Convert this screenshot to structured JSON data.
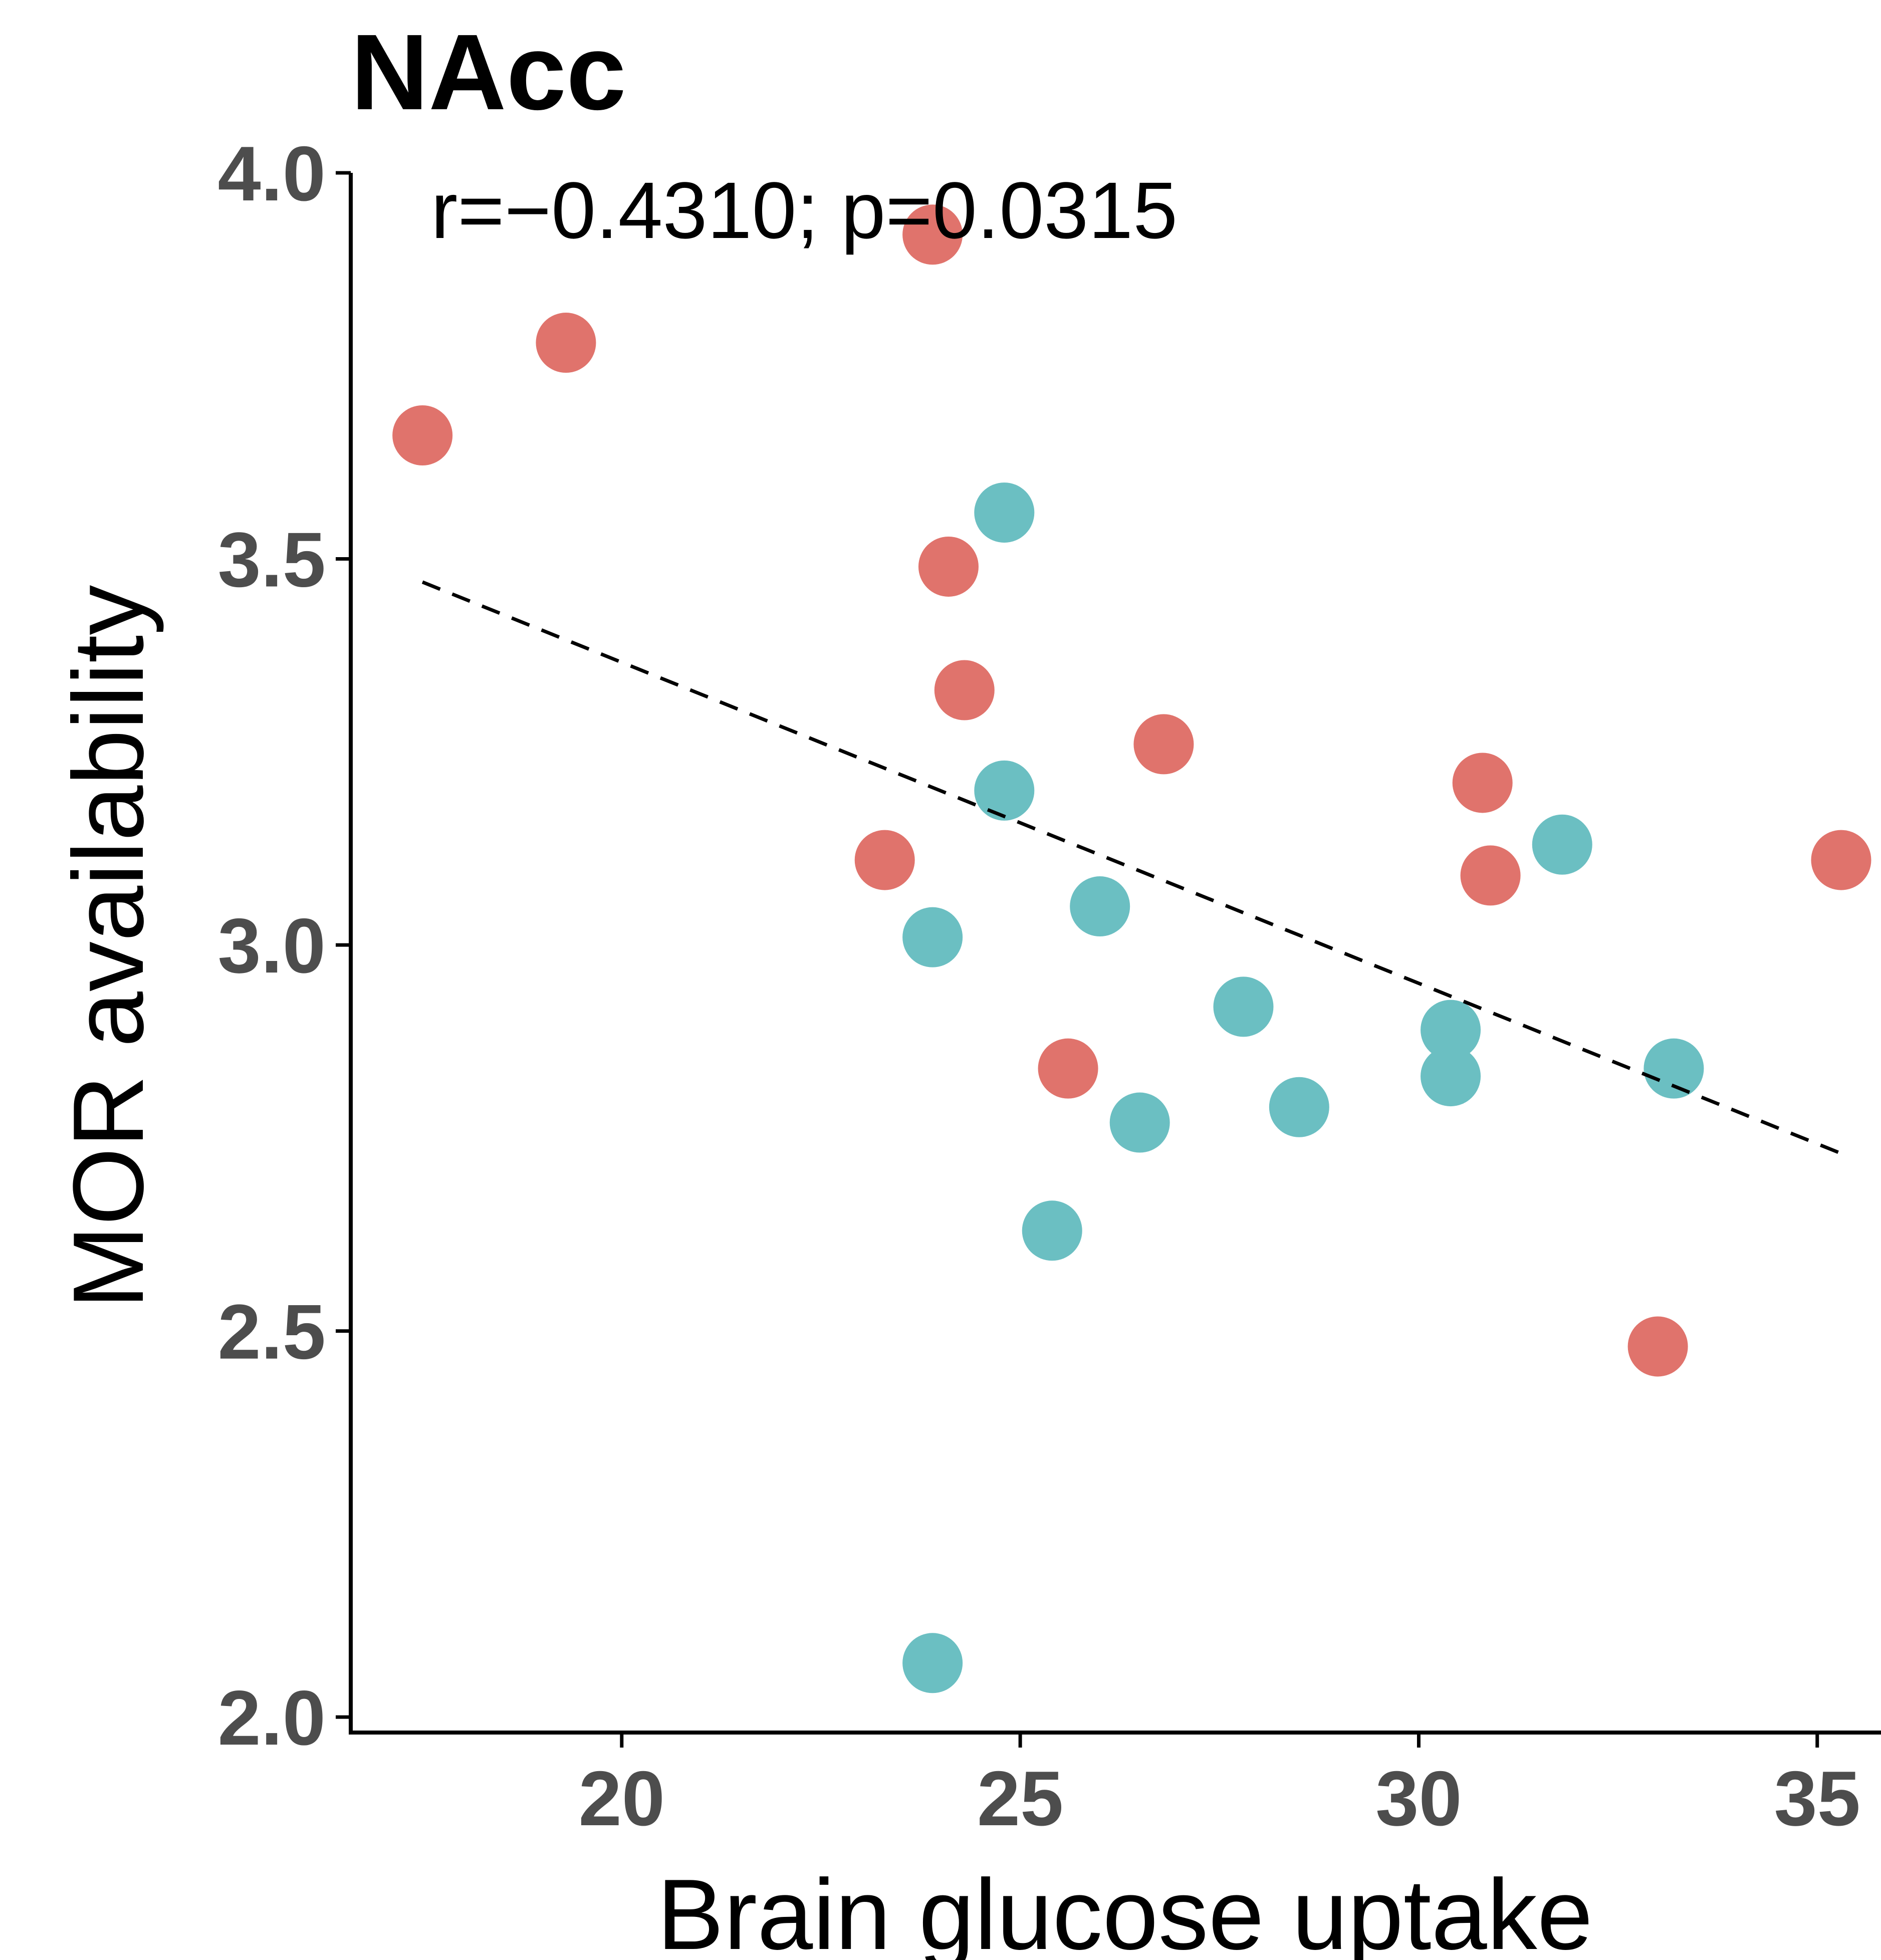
{
  "chart_data": {
    "type": "scatter",
    "title": "NAcc",
    "annotation": "r=−0.4310; p=0.0315",
    "xlabel": "Brain glucose uptake",
    "ylabel": "MOR availability",
    "xlim": [
      16.6,
      35.8
    ],
    "ylim": [
      1.98,
      4.0
    ],
    "x_ticks": [
      {
        "value": 20,
        "label": "20"
      },
      {
        "value": 25,
        "label": "25"
      },
      {
        "value": 30,
        "label": "30"
      },
      {
        "value": 35,
        "label": "35"
      }
    ],
    "y_ticks": [
      {
        "value": 2.0,
        "label": "2.0"
      },
      {
        "value": 2.5,
        "label": "2.5"
      },
      {
        "value": 3.0,
        "label": "3.0"
      },
      {
        "value": 3.5,
        "label": "3.5"
      },
      {
        "value": 4.0,
        "label": "4.0"
      }
    ],
    "grid": false,
    "series": [
      {
        "color": "#e0736c",
        "points": [
          {
            "x": 17.5,
            "y": 3.66
          },
          {
            "x": 19.3,
            "y": 3.78
          },
          {
            "x": 23.9,
            "y": 3.92
          },
          {
            "x": 24.1,
            "y": 3.49
          },
          {
            "x": 24.3,
            "y": 3.33
          },
          {
            "x": 23.3,
            "y": 3.11
          },
          {
            "x": 26.8,
            "y": 3.26
          },
          {
            "x": 25.6,
            "y": 2.84
          },
          {
            "x": 30.8,
            "y": 3.21
          },
          {
            "x": 30.9,
            "y": 3.09
          },
          {
            "x": 35.3,
            "y": 3.11
          },
          {
            "x": 33.0,
            "y": 2.48
          }
        ]
      },
      {
        "color": "#6bbfc2",
        "points": [
          {
            "x": 24.8,
            "y": 3.56
          },
          {
            "x": 24.8,
            "y": 3.2
          },
          {
            "x": 23.9,
            "y": 3.01
          },
          {
            "x": 26.0,
            "y": 3.05
          },
          {
            "x": 27.8,
            "y": 2.92
          },
          {
            "x": 26.5,
            "y": 2.77
          },
          {
            "x": 28.5,
            "y": 2.79
          },
          {
            "x": 25.4,
            "y": 2.63
          },
          {
            "x": 30.4,
            "y": 2.89
          },
          {
            "x": 30.4,
            "y": 2.83
          },
          {
            "x": 31.8,
            "y": 3.13
          },
          {
            "x": 33.2,
            "y": 2.84
          },
          {
            "x": 23.9,
            "y": 2.07
          }
        ]
      }
    ],
    "trendline": {
      "style": "dashed",
      "color": "#000000",
      "x1": 17.5,
      "y1": 3.47,
      "x2": 35.3,
      "y2": 2.73
    }
  }
}
